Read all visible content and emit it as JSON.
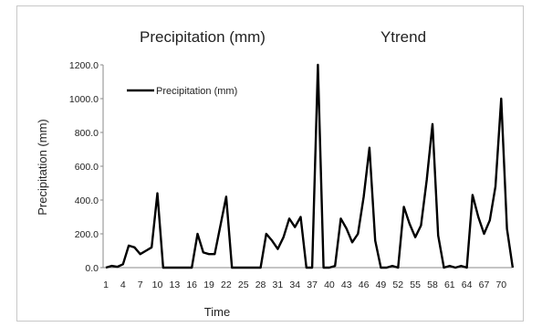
{
  "chart_data": {
    "type": "line",
    "titles": [
      "Precipitation (mm)",
      "Ytrend"
    ],
    "xlabel": "Time",
    "ylabel": "Precipitation (mm)",
    "ylim": [
      0,
      1200
    ],
    "yticks": [
      "0.0",
      "200.0",
      "400.0",
      "600.0",
      "800.0",
      "1000.0",
      "1200.0"
    ],
    "xticks": [
      "1",
      "4",
      "7",
      "10",
      "13",
      "16",
      "19",
      "22",
      "25",
      "28",
      "31",
      "34",
      "37",
      "40",
      "43",
      "46",
      "49",
      "52",
      "55",
      "58",
      "61",
      "64",
      "67",
      "70"
    ],
    "legend": {
      "position": "top-left",
      "label": "Precipitation (mm)"
    },
    "grid": false,
    "series": [
      {
        "name": "Precipitation (mm)",
        "color": "#000000",
        "x": [
          1,
          2,
          3,
          4,
          5,
          6,
          7,
          8,
          9,
          10,
          11,
          12,
          13,
          14,
          15,
          16,
          17,
          18,
          19,
          20,
          21,
          22,
          23,
          24,
          25,
          26,
          27,
          28,
          29,
          30,
          31,
          32,
          33,
          34,
          35,
          36,
          37,
          38,
          39,
          40,
          41,
          42,
          43,
          44,
          45,
          46,
          47,
          48,
          49,
          50,
          51,
          52,
          53,
          54,
          55,
          56,
          57,
          58,
          59,
          60,
          61,
          62,
          63,
          64,
          65,
          66,
          67,
          68,
          69,
          70,
          71,
          72
        ],
        "values": [
          0,
          10,
          5,
          20,
          130,
          120,
          80,
          100,
          120,
          440,
          0,
          0,
          0,
          0,
          0,
          0,
          200,
          90,
          80,
          80,
          250,
          420,
          0,
          0,
          0,
          0,
          0,
          0,
          200,
          160,
          110,
          180,
          290,
          240,
          300,
          0,
          0,
          1200,
          0,
          0,
          10,
          290,
          230,
          150,
          200,
          420,
          710,
          160,
          0,
          0,
          10,
          0,
          360,
          260,
          180,
          250,
          520,
          850,
          190,
          0,
          10,
          0,
          10,
          0,
          430,
          300,
          200,
          280,
          480,
          1000,
          230,
          0
        ]
      }
    ]
  }
}
